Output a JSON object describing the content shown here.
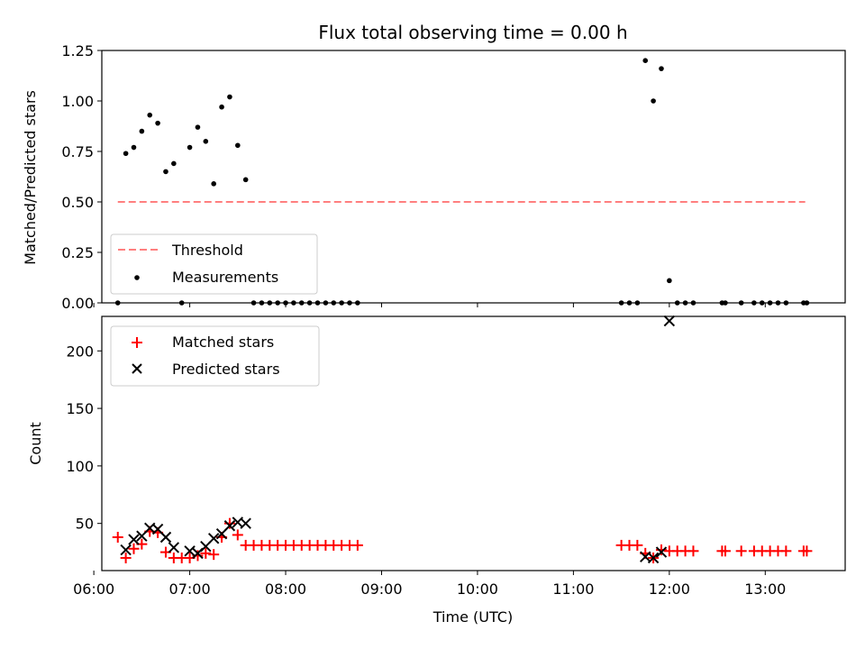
{
  "chart_data": [
    {
      "type": "scatter",
      "title": "Flux total observing time = 0.00 h",
      "xlabel": "",
      "ylabel": "Matched/Predicted stars",
      "xlim": [
        "06:05",
        "13:50"
      ],
      "ylim": [
        0,
        1.25
      ],
      "yticks": [
        0,
        0.25,
        0.5,
        0.75,
        1.0,
        1.25
      ],
      "ytick_labels": [
        "0.00",
        "0.25",
        "0.50",
        "0.75",
        "1.00",
        "1.25"
      ],
      "legend_position": "lower-left",
      "series": [
        {
          "name": "Threshold",
          "style": "dashed-line",
          "color": "#ff7f7f",
          "points": [
            [
              "06:15",
              0.5
            ],
            [
              "13:25",
              0.5
            ]
          ]
        },
        {
          "name": "Measurements",
          "style": "dot",
          "color": "#000000",
          "points": [
            [
              "06:15",
              0.0
            ],
            [
              "06:20",
              0.74
            ],
            [
              "06:25",
              0.77
            ],
            [
              "06:30",
              0.85
            ],
            [
              "06:35",
              0.93
            ],
            [
              "06:40",
              0.89
            ],
            [
              "06:45",
              0.65
            ],
            [
              "06:50",
              0.69
            ],
            [
              "06:55",
              0.0
            ],
            [
              "07:00",
              0.77
            ],
            [
              "07:05",
              0.87
            ],
            [
              "07:10",
              0.8
            ],
            [
              "07:15",
              0.59
            ],
            [
              "07:20",
              0.97
            ],
            [
              "07:25",
              1.02
            ],
            [
              "07:30",
              0.78
            ],
            [
              "07:35",
              0.61
            ],
            [
              "07:40",
              0.0
            ],
            [
              "07:45",
              0.0
            ],
            [
              "07:50",
              0.0
            ],
            [
              "07:55",
              0.0
            ],
            [
              "08:00",
              0.0
            ],
            [
              "08:05",
              0.0
            ],
            [
              "08:10",
              0.0
            ],
            [
              "08:15",
              0.0
            ],
            [
              "08:20",
              0.0
            ],
            [
              "08:25",
              0.0
            ],
            [
              "08:30",
              0.0
            ],
            [
              "08:35",
              0.0
            ],
            [
              "08:40",
              0.0
            ],
            [
              "08:45",
              0.0
            ],
            [
              "11:30",
              0.0
            ],
            [
              "11:35",
              0.0
            ],
            [
              "11:40",
              0.0
            ],
            [
              "11:45",
              1.2
            ],
            [
              "11:50",
              1.0
            ],
            [
              "11:55",
              1.16
            ],
            [
              "12:00",
              0.11
            ],
            [
              "12:05",
              0.0
            ],
            [
              "12:10",
              0.0
            ],
            [
              "12:15",
              0.0
            ],
            [
              "12:33",
              0.0
            ],
            [
              "12:35",
              0.0
            ],
            [
              "12:45",
              0.0
            ],
            [
              "12:53",
              0.0
            ],
            [
              "12:58",
              0.0
            ],
            [
              "13:03",
              0.0
            ],
            [
              "13:08",
              0.0
            ],
            [
              "13:13",
              0.0
            ],
            [
              "13:24",
              0.0
            ],
            [
              "13:26",
              0.0
            ]
          ]
        }
      ]
    },
    {
      "type": "scatter",
      "title": "",
      "xlabel": "Time (UTC)",
      "ylabel": "Count",
      "xlim": [
        "06:05",
        "13:50"
      ],
      "ylim": [
        9,
        230
      ],
      "xticks": [
        "06:00",
        "07:00",
        "08:00",
        "09:00",
        "10:00",
        "11:00",
        "12:00",
        "13:00"
      ],
      "yticks": [
        50,
        100,
        150,
        200
      ],
      "legend_position": "top-left",
      "series": [
        {
          "name": "Matched stars",
          "marker": "plus",
          "color": "#ff0000",
          "points": [
            [
              "06:15",
              38
            ],
            [
              "06:20",
              20
            ],
            [
              "06:25",
              28
            ],
            [
              "06:30",
              32
            ],
            [
              "06:35",
              43
            ],
            [
              "06:40",
              42
            ],
            [
              "06:45",
              25
            ],
            [
              "06:50",
              20
            ],
            [
              "06:55",
              20
            ],
            [
              "07:00",
              20
            ],
            [
              "07:05",
              22
            ],
            [
              "07:10",
              24
            ],
            [
              "07:15",
              23
            ],
            [
              "07:20",
              38
            ],
            [
              "07:25",
              50
            ],
            [
              "07:30",
              40
            ],
            [
              "07:35",
              31
            ],
            [
              "07:40",
              31
            ],
            [
              "07:45",
              31
            ],
            [
              "07:50",
              31
            ],
            [
              "07:55",
              31
            ],
            [
              "08:00",
              31
            ],
            [
              "08:05",
              31
            ],
            [
              "08:10",
              31
            ],
            [
              "08:15",
              31
            ],
            [
              "08:20",
              31
            ],
            [
              "08:25",
              31
            ],
            [
              "08:30",
              31
            ],
            [
              "08:35",
              31
            ],
            [
              "08:40",
              31
            ],
            [
              "08:45",
              31
            ],
            [
              "11:30",
              31
            ],
            [
              "11:35",
              31
            ],
            [
              "11:40",
              31
            ],
            [
              "11:45",
              24
            ],
            [
              "11:50",
              20
            ],
            [
              "11:55",
              27
            ],
            [
              "12:00",
              26
            ],
            [
              "12:05",
              26
            ],
            [
              "12:10",
              26
            ],
            [
              "12:15",
              26
            ],
            [
              "12:33",
              26
            ],
            [
              "12:35",
              26
            ],
            [
              "12:45",
              26
            ],
            [
              "12:53",
              26
            ],
            [
              "12:58",
              26
            ],
            [
              "13:03",
              26
            ],
            [
              "13:08",
              26
            ],
            [
              "13:13",
              26
            ],
            [
              "13:24",
              26
            ],
            [
              "13:26",
              26
            ]
          ]
        },
        {
          "name": "Predicted stars",
          "marker": "x",
          "color": "#000000",
          "points": [
            [
              "06:20",
              27
            ],
            [
              "06:25",
              36
            ],
            [
              "06:30",
              39
            ],
            [
              "06:35",
              46
            ],
            [
              "06:40",
              45
            ],
            [
              "06:45",
              38
            ],
            [
              "06:50",
              29
            ],
            [
              "07:00",
              26
            ],
            [
              "07:05",
              24
            ],
            [
              "07:10",
              30
            ],
            [
              "07:15",
              37
            ],
            [
              "07:20",
              41
            ],
            [
              "07:25",
              48
            ],
            [
              "07:30",
              51
            ],
            [
              "07:35",
              50
            ],
            [
              "11:45",
              21
            ],
            [
              "11:50",
              20
            ],
            [
              "11:55",
              25
            ],
            [
              "12:00",
              226
            ]
          ]
        }
      ]
    }
  ]
}
